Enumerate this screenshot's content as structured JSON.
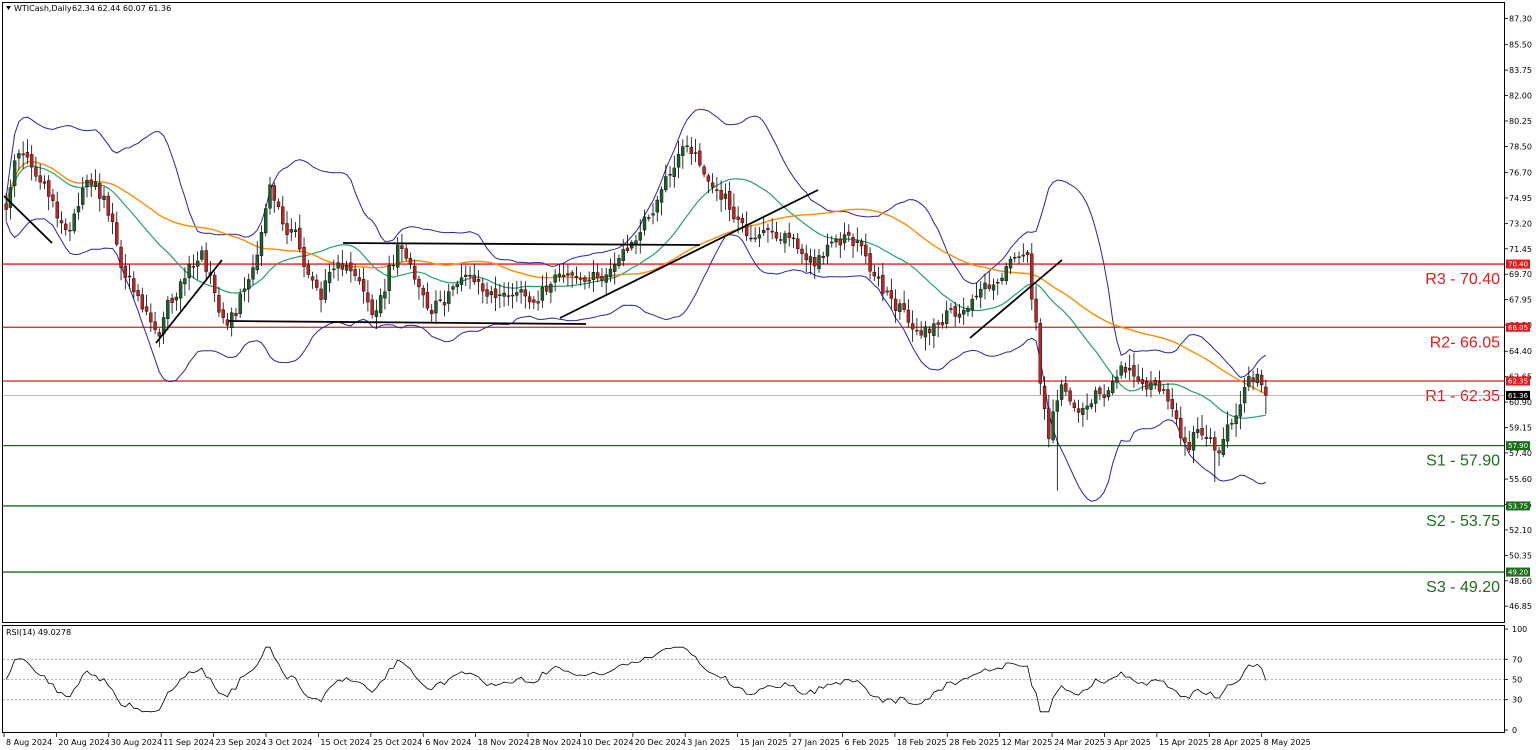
{
  "header": {
    "symbol": "WTICash,Daily",
    "ohlc": "62.34 62.44 60.07 61.36"
  },
  "rsi_header": "RSI(14) 49.0278",
  "colors": {
    "resistance": "#e31a1c",
    "support": "#1b6e1b",
    "bull": "#1f5f2b",
    "bear": "#c0221f",
    "ma_fast": "#21a36b",
    "ma_slow": "#ff8c00",
    "bollinger": "#27279b",
    "trendline": "#000000",
    "rsi": "#000000",
    "current_price_bg": "#000000"
  },
  "levels": [
    {
      "id": "R3",
      "value": 70.4,
      "label": "R3 - 70.40",
      "tag": "70.40",
      "kind": "resistance"
    },
    {
      "id": "R2",
      "value": 66.05,
      "label": "R2- 66.05",
      "tag": "66.05",
      "kind": "resistance"
    },
    {
      "id": "R1",
      "value": 62.35,
      "label": "R1 - 62.35",
      "tag": "62.35",
      "kind": "resistance"
    },
    {
      "id": "S1",
      "value": 57.9,
      "label": "S1 - 57.90",
      "tag": "57.90",
      "kind": "support"
    },
    {
      "id": "S2",
      "value": 53.75,
      "label": "S2 - 53.75",
      "tag": "53.75",
      "kind": "support"
    },
    {
      "id": "S3",
      "value": 49.2,
      "label": "S3 - 49.20",
      "tag": "49.20",
      "kind": "support"
    }
  ],
  "current_price": {
    "value": 61.36,
    "tag": "61.36"
  },
  "chart_data": {
    "type": "candlestick",
    "title": "WTICash,Daily",
    "y_axis_ticks": [
      "87.30",
      "85.50",
      "83.75",
      "82.00",
      "80.25",
      "78.50",
      "76.70",
      "74.95",
      "73.20",
      "71.45",
      "69.70",
      "67.95",
      "66.20",
      "64.40",
      "62.65",
      "60.90",
      "59.15",
      "57.40",
      "55.60",
      "53.85",
      "52.10",
      "50.35",
      "48.60",
      "46.85"
    ],
    "ylim": [
      45.9,
      88.3
    ],
    "x_axis_dates": [
      "8 Aug 2024",
      "20 Aug 2024",
      "30 Aug 2024",
      "11 Sep 2024",
      "23 Sep 2024",
      "3 Oct 2024",
      "15 Oct 2024",
      "25 Oct 2024",
      "6 Nov 2024",
      "18 Nov 2024",
      "28 Nov 2024",
      "10 Dec 2024",
      "20 Dec 2024",
      "3 Jan 2025",
      "15 Jan 2025",
      "27 Jan 2025",
      "6 Feb 2025",
      "18 Feb 2025",
      "28 Feb 2025",
      "12 Mar 2025",
      "24 Mar 2025",
      "3 Apr 2025",
      "15 Apr 2025",
      "28 Apr 2025",
      "8 May 2025"
    ],
    "close_path": [
      [
        0,
        74.6
      ],
      [
        2,
        77.2
      ],
      [
        4,
        78.3
      ],
      [
        6,
        76.8
      ],
      [
        9,
        75.6
      ],
      [
        12,
        73.9
      ],
      [
        14,
        72.4
      ],
      [
        17,
        74.7
      ],
      [
        19,
        76.5
      ],
      [
        21,
        75.9
      ],
      [
        23,
        74.8
      ],
      [
        25,
        72.9
      ],
      [
        27,
        70.5
      ],
      [
        29,
        69.2
      ],
      [
        31,
        67.8
      ],
      [
        34,
        66.4
      ],
      [
        36,
        65.2
      ],
      [
        38,
        67.6
      ],
      [
        40,
        68.4
      ],
      [
        42,
        69.6
      ],
      [
        44,
        70.6
      ],
      [
        46,
        71.1
      ],
      [
        48,
        69.5
      ],
      [
        50,
        67.5
      ],
      [
        52,
        66.6
      ],
      [
        54,
        67.2
      ],
      [
        56,
        68.9
      ],
      [
        58,
        70.2
      ],
      [
        60,
        72.7
      ],
      [
        62,
        75.6
      ],
      [
        64,
        74.1
      ],
      [
        66,
        72.4
      ],
      [
        68,
        73.1
      ],
      [
        70,
        70.2
      ],
      [
        72,
        69.1
      ],
      [
        74,
        68.4
      ],
      [
        76,
        69.4
      ],
      [
        78,
        70.1
      ],
      [
        80,
        70.7
      ],
      [
        82,
        69.8
      ],
      [
        84,
        68.3
      ],
      [
        86,
        66.9
      ],
      [
        88,
        67.8
      ],
      [
        90,
        69.9
      ],
      [
        92,
        71.3
      ],
      [
        94,
        71.2
      ],
      [
        96,
        69.8
      ],
      [
        98,
        68.2
      ],
      [
        100,
        67.3
      ],
      [
        102,
        67.6
      ],
      [
        104,
        68.4
      ],
      [
        106,
        68.9
      ],
      [
        108,
        69.9
      ],
      [
        110,
        69.4
      ],
      [
        112,
        68.6
      ],
      [
        114,
        68.4
      ],
      [
        116,
        68.1
      ],
      [
        118,
        68.5
      ],
      [
        120,
        68.4
      ],
      [
        122,
        68.6
      ],
      [
        124,
        67.8
      ],
      [
        126,
        68.4
      ],
      [
        128,
        69.4
      ],
      [
        130,
        70.1
      ],
      [
        132,
        69.7
      ],
      [
        134,
        69.4
      ],
      [
        136,
        69.2
      ],
      [
        138,
        69.4
      ],
      [
        140,
        69.7
      ],
      [
        142,
        70.1
      ],
      [
        144,
        70.6
      ],
      [
        146,
        71.4
      ],
      [
        148,
        72.2
      ],
      [
        150,
        73.3
      ],
      [
        152,
        74.2
      ],
      [
        154,
        75.6
      ],
      [
        156,
        76.9
      ],
      [
        158,
        77.9
      ],
      [
        160,
        78.8
      ],
      [
        162,
        77.9
      ],
      [
        164,
        76.6
      ],
      [
        166,
        75.9
      ],
      [
        168,
        75.2
      ],
      [
        170,
        74.4
      ],
      [
        172,
        73.4
      ],
      [
        174,
        72.6
      ],
      [
        176,
        72.3
      ],
      [
        178,
        72.9
      ],
      [
        180,
        72.2
      ],
      [
        182,
        71.8
      ],
      [
        184,
        72.6
      ],
      [
        186,
        71.4
      ],
      [
        188,
        70.9
      ],
      [
        190,
        70.7
      ],
      [
        192,
        71.1
      ],
      [
        194,
        71.6
      ],
      [
        196,
        72.0
      ],
      [
        198,
        72.4
      ],
      [
        200,
        71.8
      ],
      [
        202,
        70.7
      ],
      [
        204,
        69.6
      ],
      [
        206,
        68.7
      ],
      [
        208,
        67.8
      ],
      [
        210,
        67.4
      ],
      [
        212,
        66.4
      ],
      [
        214,
        65.6
      ],
      [
        216,
        66.0
      ],
      [
        218,
        66.2
      ],
      [
        220,
        66.6
      ],
      [
        222,
        67.0
      ],
      [
        224,
        67.3
      ],
      [
        226,
        67.5
      ],
      [
        228,
        68.3
      ],
      [
        230,
        68.9
      ],
      [
        232,
        69.2
      ],
      [
        234,
        69.3
      ],
      [
        236,
        70.6
      ],
      [
        238,
        71.0
      ],
      [
        240,
        70.6
      ],
      [
        241,
        68.0
      ],
      [
        242,
        66.0
      ],
      [
        243,
        62.0
      ],
      [
        244,
        60.7
      ],
      [
        245,
        58.3
      ],
      [
        246,
        59.8
      ],
      [
        247,
        60.9
      ],
      [
        248,
        61.9
      ],
      [
        250,
        61.4
      ],
      [
        252,
        60.5
      ],
      [
        254,
        60.7
      ],
      [
        256,
        61.6
      ],
      [
        258,
        61.2
      ],
      [
        260,
        62.7
      ],
      [
        262,
        63.3
      ],
      [
        264,
        62.8
      ],
      [
        266,
        62.2
      ],
      [
        268,
        61.9
      ],
      [
        270,
        62.4
      ],
      [
        272,
        61.6
      ],
      [
        274,
        60.2
      ],
      [
        276,
        58.7
      ],
      [
        278,
        57.9
      ],
      [
        280,
        59.2
      ],
      [
        282,
        58.6
      ],
      [
        284,
        57.9
      ],
      [
        285,
        57.0
      ],
      [
        286,
        58.5
      ],
      [
        288,
        59.7
      ],
      [
        290,
        61.1
      ],
      [
        292,
        62.4
      ],
      [
        294,
        62.4
      ],
      [
        296,
        61.36
      ]
    ],
    "n_bars": 297,
    "overlays": [
      "Bollinger Bands",
      "Moving Average (fast, green)",
      "Moving Average (slow, orange)",
      "Trendlines"
    ],
    "rsi": {
      "name": "RSI(14)",
      "last": 49.0278,
      "levels": [
        30,
        50,
        70
      ],
      "ticks": [
        "100",
        "70",
        "50",
        "30",
        "0"
      ],
      "ylim": [
        0,
        100
      ]
    },
    "grid": false,
    "legend": "none"
  }
}
